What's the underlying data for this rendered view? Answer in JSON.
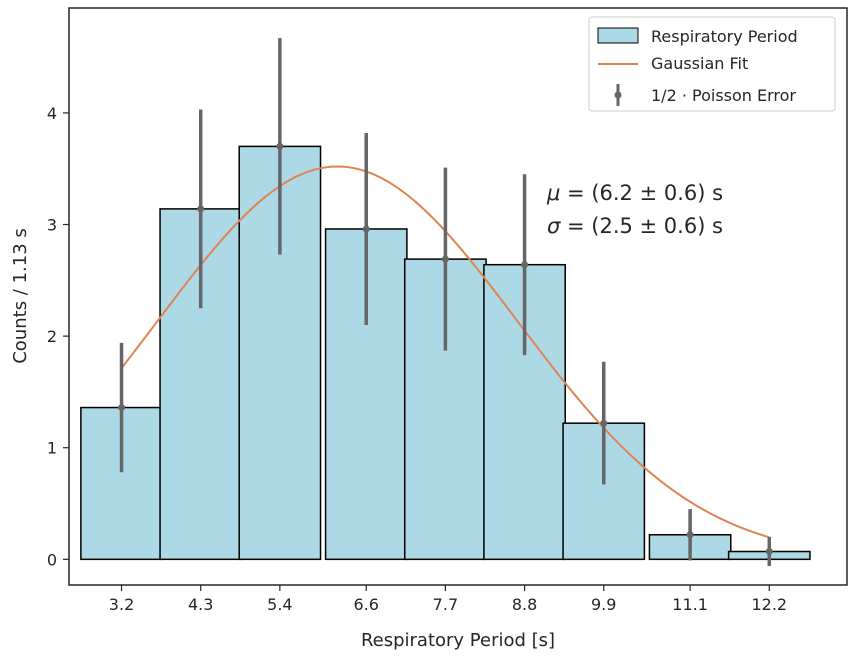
{
  "chart_data": {
    "type": "bar",
    "xlabel": "Respiratory Period [s]",
    "ylabel": "Counts / 1.13 s",
    "xticks": [
      "3.2",
      "4.3",
      "5.4",
      "6.6",
      "7.7",
      "8.8",
      "9.9",
      "11.1",
      "12.2"
    ],
    "yticks": [
      "0",
      "1",
      "2",
      "3",
      "4"
    ],
    "xlim": [
      2.47,
      13.28
    ],
    "ylim": [
      -0.23,
      4.94
    ],
    "bin_width": 1.13,
    "bin_centers": [
      3.2,
      4.3,
      5.4,
      6.6,
      7.7,
      8.8,
      9.9,
      11.1,
      12.2
    ],
    "series": [
      {
        "name": "Respiratory Period",
        "kind": "histogram",
        "color": "#add8e6",
        "edgecolor": "#000000",
        "values": [
          1.36,
          3.14,
          3.7,
          2.96,
          2.69,
          2.64,
          1.22,
          0.22,
          0.07
        ]
      },
      {
        "name": "Gaussian Fit",
        "kind": "line",
        "color": "#dd8452",
        "mu": 6.2,
        "sigma": 2.5,
        "amplitude": 3.52,
        "x_range": [
          3.2,
          12.2
        ]
      },
      {
        "name": "1/2 · Poisson Error",
        "kind": "errorbar",
        "color": "#666666",
        "values": [
          1.36,
          3.14,
          3.7,
          2.96,
          2.69,
          2.64,
          1.22,
          0.22,
          0.07
        ],
        "errors": [
          0.58,
          0.89,
          0.97,
          0.86,
          0.82,
          0.81,
          0.55,
          0.23,
          0.13
        ]
      }
    ],
    "annotations": [
      "$\\mu$ = (6.2 ± 0.6) s",
      "$\\sigma$ = (2.5 ± 0.6) s"
    ],
    "legend_position": "top-right",
    "grid": false
  }
}
